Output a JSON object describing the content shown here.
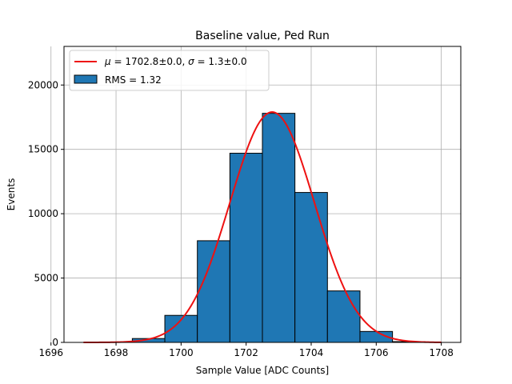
{
  "chart_data": {
    "type": "bar",
    "title": "Baseline value, Ped Run",
    "xlabel": "Sample Value [ADC Counts]",
    "ylabel": "Events",
    "xlim": [
      1696.4,
      1708.6
    ],
    "ylim": [
      0,
      23000
    ],
    "xticks": [
      1696,
      1698,
      1700,
      1702,
      1704,
      1706,
      1708
    ],
    "yticks": [
      0,
      5000,
      10000,
      15000,
      20000
    ],
    "grid": true,
    "legend_position": "top-left",
    "histogram": {
      "name": "RMS = 1.32",
      "color": "#1f77b4",
      "bins": [
        {
          "x0": 1697.5,
          "x1": 1698.5,
          "value": 30
        },
        {
          "x0": 1698.5,
          "x1": 1699.5,
          "value": 300
        },
        {
          "x0": 1699.5,
          "x1": 1700.5,
          "value": 2100
        },
        {
          "x0": 1700.5,
          "x1": 1701.5,
          "value": 7900
        },
        {
          "x0": 1701.5,
          "x1": 1702.5,
          "value": 14700
        },
        {
          "x0": 1702.5,
          "x1": 1703.5,
          "value": 17800
        },
        {
          "x0": 1703.5,
          "x1": 1704.5,
          "value": 11650
        },
        {
          "x0": 1704.5,
          "x1": 1705.5,
          "value": 4000
        },
        {
          "x0": 1705.5,
          "x1": 1706.5,
          "value": 850
        },
        {
          "x0": 1706.5,
          "x1": 1707.5,
          "value": 60
        }
      ]
    },
    "fit": {
      "name_prefix_mu": "μ",
      "name_prefix_sigma": "σ",
      "label_eq1": " = 1702.8±0.0, ",
      "label_eq2": " = 1.3±0.0",
      "color": "#ee1111",
      "type": "gaussian",
      "mu": 1702.8,
      "sigma": 1.3,
      "amplitude": 17900,
      "x_range": [
        1697,
        1708
      ]
    }
  }
}
